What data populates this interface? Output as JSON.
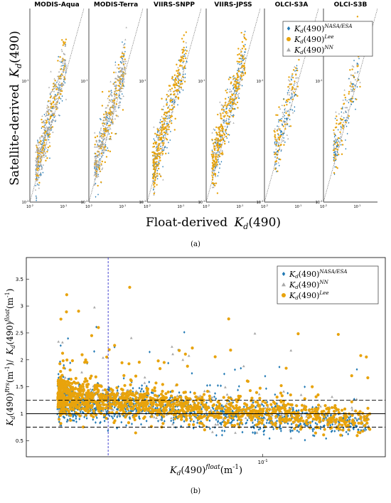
{
  "figure": {
    "caption_a": "(a)",
    "caption_b": "(b)"
  },
  "colors": {
    "nasa": "#1f78b4",
    "lee": "#e8a30c",
    "nn": "#a8a8a8",
    "vline": "#3333cc"
  },
  "chart_data": [
    {
      "type": "scatter",
      "title": "",
      "layout": "six log-log panels side by side",
      "panels": [
        "MODIS-Aqua",
        "MODIS-Terra",
        "VIIRS-SNPP",
        "VIIRS-JPSS",
        "OLCI-S3A",
        "OLCI-S3B"
      ],
      "xlabel": "Float-derived",
      "ylabel": "Satellite-derived",
      "var_base": "K",
      "var_sub": "d",
      "var_arg": "(490)",
      "x_scale": "log",
      "y_scale": "log",
      "xlim": [
        0.01,
        0.4
      ],
      "ylim": [
        0.01,
        0.4
      ],
      "x_ticks": [
        "10",
        "10"
      ],
      "x_tick_exps": [
        "-2",
        "-1"
      ],
      "y_ticks": [
        "10",
        "10"
      ],
      "y_tick_exps": [
        "-2",
        "-1"
      ],
      "reference_line": "1:1 dotted",
      "legend_position": "top-right",
      "series": [
        {
          "name": "NASA/ESA",
          "marker": "diamond",
          "color": "#1f78b4"
        },
        {
          "name": "Lee",
          "marker": "circle",
          "color": "#e8a30c"
        },
        {
          "name": "NN",
          "marker": "triangle",
          "color": "#a8a8a8"
        }
      ],
      "clusters": {
        "MODIS-Aqua": {
          "x": [
            0.015,
            0.12
          ],
          "y": [
            0.02,
            0.16
          ],
          "dominant": "NN"
        },
        "MODIS-Terra": {
          "x": [
            0.015,
            0.12
          ],
          "y": [
            0.02,
            0.16
          ],
          "dominant": "NN"
        },
        "VIIRS-SNPP": {
          "x": [
            0.015,
            0.15
          ],
          "y": [
            0.015,
            0.18
          ],
          "dominant": "Lee"
        },
        "VIIRS-JPSS": {
          "x": [
            0.015,
            0.15
          ],
          "y": [
            0.015,
            0.18
          ],
          "dominant": "Lee"
        },
        "OLCI-S3A": {
          "x": [
            0.02,
            0.1
          ],
          "y": [
            0.02,
            0.12
          ],
          "dominant": "mixed"
        },
        "OLCI-S3B": {
          "x": [
            0.02,
            0.12
          ],
          "y": [
            0.02,
            0.15
          ],
          "dominant": "mixed"
        }
      }
    },
    {
      "type": "scatter",
      "title": "",
      "xlabel_base": "K",
      "xlabel_sub": "d",
      "xlabel_arg": "(490)",
      "xlabel_sup": "float",
      "xlabel_unit": "(m",
      "xlabel_unit_exp": "-1",
      "xlabel_close": ")",
      "ylabel_num_base": "K",
      "ylabel_num_sub": "d",
      "ylabel_num_arg": "(490)",
      "ylabel_num_sup": "Rrs",
      "ylabel_num_unit": "(m",
      "ylabel_num_exp": "-1",
      "ylabel_sep": ")/",
      "ylabel_den_base": "K",
      "ylabel_den_sub": "d",
      "ylabel_den_arg": "(490)",
      "ylabel_den_sup": "float",
      "ylabel_den_unit": "(m",
      "ylabel_den_exp": "-1",
      "ylabel_close": ")",
      "x_scale": "log",
      "xlim": [
        0.012,
        0.3
      ],
      "ylim": [
        0.2,
        3.9
      ],
      "y_ticks": [
        0.5,
        1,
        1.5,
        2,
        2.5,
        3,
        3.5
      ],
      "y_tick_labels": [
        "0.5",
        "1",
        "1.5",
        "2",
        "2.5",
        "3",
        "3.5"
      ],
      "x_tick_base": "10",
      "x_tick_exp": "-1",
      "x_tick_value": 0.1,
      "ref_lines": {
        "solid": 1.0,
        "dashed": [
          0.75,
          1.25
        ],
        "vertical_dashed_x": 0.025
      },
      "legend_position": "top-right",
      "series": [
        {
          "name": "NASA/ESA",
          "marker": "diamond",
          "color": "#1f78b4"
        },
        {
          "name": "NN",
          "marker": "triangle",
          "color": "#a8a8a8"
        },
        {
          "name": "Lee",
          "marker": "circle",
          "color": "#e8a30c"
        }
      ]
    }
  ]
}
